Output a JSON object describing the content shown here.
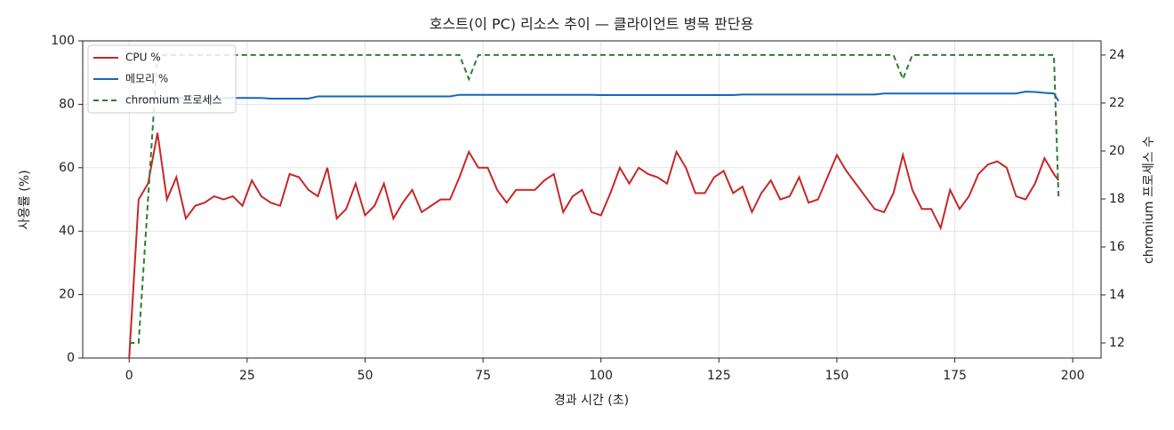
{
  "chart_data": {
    "type": "line",
    "title": "호스트(이 PC) 리소스 추이 — 클라이언트 병목 판단용",
    "xlabel": "경과 시간 (초)",
    "ylabel": "사용률 (%)",
    "y2label": "chromium 프로세스 수",
    "x": [
      0,
      2,
      4,
      6,
      8,
      10,
      12,
      14,
      16,
      18,
      20,
      22,
      24,
      26,
      28,
      30,
      32,
      34,
      36,
      38,
      40,
      42,
      44,
      46,
      48,
      50,
      52,
      54,
      56,
      58,
      60,
      62,
      64,
      66,
      68,
      70,
      72,
      74,
      76,
      78,
      80,
      82,
      84,
      86,
      88,
      90,
      92,
      94,
      96,
      98,
      100,
      102,
      104,
      106,
      108,
      110,
      112,
      114,
      116,
      118,
      120,
      122,
      124,
      126,
      128,
      130,
      132,
      134,
      136,
      138,
      140,
      142,
      144,
      146,
      148,
      150,
      152,
      154,
      156,
      158,
      160,
      162,
      164,
      166,
      168,
      170,
      172,
      174,
      176,
      178,
      180,
      182,
      184,
      186,
      188,
      190,
      192,
      194,
      196,
      197
    ],
    "series": [
      {
        "name": "CPU %",
        "color": "#c62828",
        "values": [
          0,
          50,
          55,
          71,
          50,
          57,
          44,
          48,
          49,
          51,
          50,
          51,
          48,
          56,
          51,
          49,
          48,
          58,
          57,
          53,
          51,
          60,
          44,
          47,
          55,
          45,
          48,
          55,
          44,
          49,
          53,
          46,
          48,
          50,
          50,
          57,
          65,
          60,
          60,
          53,
          49,
          53,
          53,
          53,
          56,
          58,
          46,
          51,
          53,
          46,
          45,
          52,
          60,
          55,
          60,
          58,
          57,
          55,
          65,
          60,
          52,
          52,
          57,
          59,
          52,
          54,
          46,
          52,
          56,
          50,
          51,
          57,
          49,
          50,
          57,
          64,
          59,
          55,
          51,
          47,
          46,
          52,
          64,
          53,
          47,
          47,
          41,
          53,
          47,
          51,
          58,
          61,
          62,
          60,
          51,
          50,
          55,
          63,
          58,
          56
        ]
      },
      {
        "name": "메모리 %",
        "color": "#1565c0",
        "values": [
          82,
          82,
          82,
          82,
          82,
          82,
          82,
          82,
          82,
          82,
          82,
          82,
          82,
          82,
          82,
          81.8,
          81.8,
          81.8,
          81.8,
          81.8,
          82.5,
          82.5,
          82.5,
          82.5,
          82.5,
          82.5,
          82.5,
          82.5,
          82.5,
          82.5,
          82.5,
          82.5,
          82.5,
          82.5,
          82.5,
          83,
          83,
          83,
          83,
          83,
          83,
          83,
          83,
          83,
          83,
          83,
          83,
          83,
          83,
          83,
          82.9,
          82.9,
          82.9,
          82.9,
          82.9,
          82.9,
          82.9,
          82.9,
          82.9,
          82.9,
          82.9,
          82.9,
          82.9,
          82.9,
          82.9,
          83.1,
          83.1,
          83.1,
          83.1,
          83.1,
          83.1,
          83.1,
          83.1,
          83.1,
          83.1,
          83.1,
          83.1,
          83.1,
          83.1,
          83.1,
          83.4,
          83.4,
          83.4,
          83.4,
          83.4,
          83.4,
          83.4,
          83.4,
          83.4,
          83.4,
          83.4,
          83.4,
          83.4,
          83.4,
          83.4,
          84,
          83.9,
          83.6,
          83.4,
          81
        ]
      },
      {
        "name": "chromium 프로세스",
        "color": "#2e7d32",
        "dashed": true,
        "axis": "y2",
        "values": [
          12,
          12,
          18,
          24,
          24,
          24,
          24,
          24,
          24,
          24,
          24,
          24,
          24,
          24,
          24,
          24,
          24,
          24,
          24,
          24,
          24,
          24,
          24,
          24,
          24,
          24,
          24,
          24,
          24,
          24,
          24,
          24,
          24,
          24,
          24,
          24,
          23,
          24,
          24,
          24,
          24,
          24,
          24,
          24,
          24,
          24,
          24,
          24,
          24,
          24,
          24,
          24,
          24,
          24,
          24,
          24,
          24,
          24,
          24,
          24,
          24,
          24,
          24,
          24,
          24,
          24,
          24,
          24,
          24,
          24,
          24,
          24,
          24,
          24,
          24,
          24,
          24,
          24,
          24,
          24,
          24,
          24,
          23,
          24,
          24,
          24,
          24,
          24,
          24,
          24,
          24,
          24,
          24,
          24,
          24,
          24,
          24,
          24,
          24,
          18
        ]
      }
    ],
    "xlim": [
      -9.85,
      206
    ],
    "xticks": [
      0,
      25,
      50,
      75,
      100,
      125,
      150,
      175,
      200
    ],
    "ylim": [
      0,
      100
    ],
    "yticks": [
      0,
      20,
      40,
      60,
      80,
      100
    ],
    "y2lim": [
      11.37,
      24.59
    ],
    "y2ticks": [
      12,
      14,
      16,
      18,
      20,
      22,
      24
    ],
    "grid": true,
    "legend": "upper-left"
  }
}
